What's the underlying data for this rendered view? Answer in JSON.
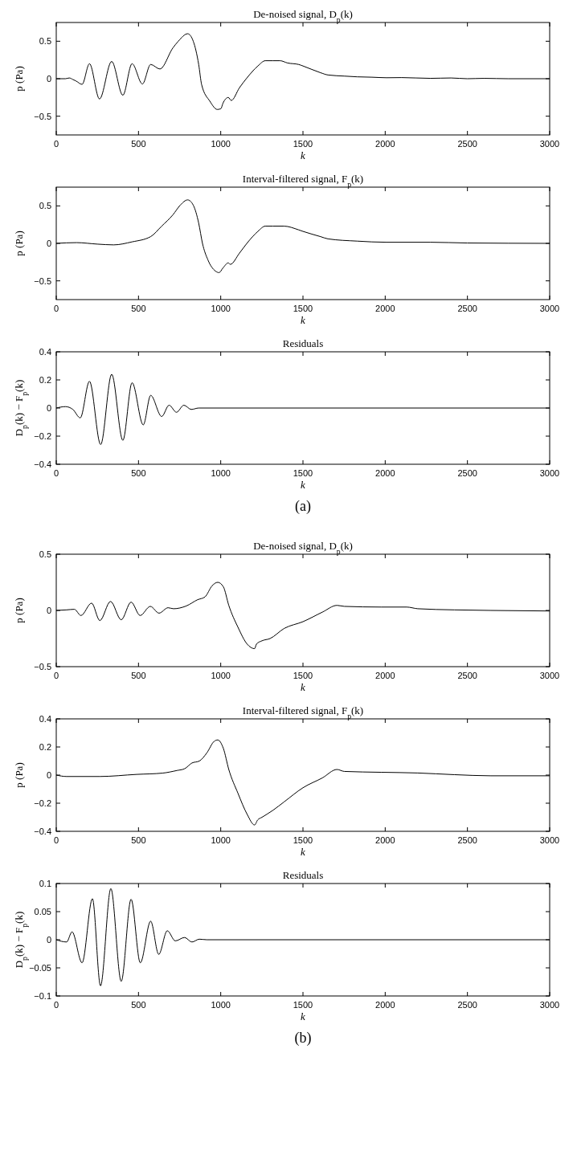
{
  "chart_data": [
    {
      "type": "line",
      "title": "De-noised signal, D$_{p}$(k)",
      "xlabel": "k",
      "ylabel": "p (Pa)",
      "color": "#000000",
      "x": [
        0,
        56,
        79,
        101,
        120,
        157,
        202,
        263,
        337,
        405,
        461,
        524,
        574,
        630,
        709,
        742,
        799,
        833,
        866,
        884,
        934,
        979,
        1001,
        1013,
        1046,
        1064,
        1114,
        1159,
        1226,
        1271,
        1316,
        1361,
        1406,
        1474,
        1500,
        1607,
        1652,
        1750,
        1830,
        1920,
        2008,
        2100,
        2276,
        2400,
        2499,
        2600,
        2750,
        3000
      ],
      "values": [
        0,
        0,
        0.01,
        -0.01,
        -0.03,
        -0.075,
        0.2,
        -0.27,
        0.23,
        -0.22,
        0.2,
        -0.07,
        0.19,
        0.13,
        0.41,
        0.5,
        0.6,
        0.5,
        0.19,
        -0.08,
        -0.3,
        -0.41,
        -0.4,
        -0.33,
        -0.25,
        -0.29,
        -0.12,
        0.01,
        0.17,
        0.24,
        0.24,
        0.24,
        0.21,
        0.19,
        0.17,
        0.08,
        0.05,
        0.035,
        0.025,
        0.02,
        0.013,
        0.015,
        0.005,
        0.01,
        0,
        0.005,
        0,
        0
      ],
      "xlim": [
        0,
        3000
      ],
      "xticks": [
        0,
        500,
        1000,
        1500,
        2000,
        2500,
        3000
      ],
      "ylim": [
        -0.75,
        0.75
      ],
      "yticks": [
        {
          "value": -0.5,
          "label": "−0.5"
        },
        0,
        0.5
      ]
    },
    {
      "type": "line",
      "title": "Interval-filtered signal, F$_{p}$(k)",
      "xlabel": "k",
      "ylabel": "p (Pa)",
      "color": "#000000",
      "x": [
        0,
        124,
        250,
        349,
        461,
        574,
        641,
        709,
        754,
        799,
        833,
        866,
        889,
        922,
        968,
        990,
        1013,
        1046,
        1058,
        1114,
        1159,
        1226,
        1271,
        1316,
        1384,
        1474,
        1500,
        1607,
        1652,
        1830,
        2008,
        2276,
        2500,
        3000
      ],
      "values": [
        0,
        0.01,
        -0.01,
        -0.02,
        0.02,
        0.09,
        0.23,
        0.38,
        0.51,
        0.58,
        0.51,
        0.27,
        0,
        -0.22,
        -0.37,
        -0.39,
        -0.33,
        -0.26,
        -0.28,
        -0.13,
        0,
        0.16,
        0.23,
        0.23,
        0.23,
        0.18,
        0.16,
        0.09,
        0.06,
        0.03,
        0.015,
        0.015,
        0.005,
        0
      ],
      "xlim": [
        0,
        3000
      ],
      "xticks": [
        0,
        500,
        1000,
        1500,
        2000,
        2500,
        3000
      ],
      "ylim": [
        -0.75,
        0.75
      ],
      "yticks": [
        {
          "value": -0.5,
          "label": "−0.5"
        },
        0,
        0.5
      ]
    },
    {
      "type": "line",
      "title": "Residuals",
      "xlabel": "k",
      "ylabel": "D$_{p}$(k) − F$_{p}$(k)",
      "color": "#000000",
      "annotations": [
        "(a)"
      ],
      "x": [
        0,
        56,
        101,
        146,
        202,
        270,
        337,
        405,
        461,
        529,
        574,
        641,
        686,
        731,
        776,
        821,
        866,
        3000
      ],
      "values": [
        0,
        0.01,
        -0.01,
        -0.07,
        0.19,
        -0.26,
        0.24,
        -0.23,
        0.18,
        -0.12,
        0.09,
        -0.06,
        0.02,
        -0.03,
        0.02,
        -0.01,
        0,
        0
      ],
      "xlim": [
        0,
        3000
      ],
      "xticks": [
        0,
        500,
        1000,
        1500,
        2000,
        2500,
        3000
      ],
      "ylim": [
        -0.4,
        0.4
      ],
      "yticks": [
        {
          "value": -0.4,
          "label": "−0.4"
        },
        {
          "value": -0.2,
          "label": "−0.2"
        },
        0,
        0.2,
        0.4
      ]
    },
    {
      "type": "line",
      "title": "De-noised signal, D$_{p}$(k)",
      "xlabel": "k",
      "ylabel": "p (Pa)",
      "color": "#000000",
      "x": [
        0,
        63,
        110,
        150,
        215,
        265,
        330,
        395,
        455,
        510,
        572,
        625,
        680,
        713,
        791,
        859,
        904,
        948,
        982,
        1016,
        1049,
        1105,
        1161,
        1206,
        1217,
        1251,
        1300,
        1386,
        1500,
        1618,
        1707,
        1752,
        1975,
        2131,
        2198,
        2420,
        2643,
        3000
      ],
      "values": [
        0,
        0.005,
        0.01,
        -0.045,
        0.065,
        -0.09,
        0.08,
        -0.083,
        0.074,
        -0.045,
        0.036,
        -0.024,
        0.024,
        0.015,
        0.04,
        0.095,
        0.12,
        0.22,
        0.25,
        0.21,
        0.045,
        -0.15,
        -0.3,
        -0.34,
        -0.3,
        -0.27,
        -0.25,
        -0.16,
        -0.1,
        -0.015,
        0.045,
        0.036,
        0.03,
        0.03,
        0.015,
        0.005,
        0,
        -0.005
      ],
      "xlim": [
        0,
        3000
      ],
      "xticks": [
        0,
        500,
        1000,
        1500,
        2000,
        2500,
        3000
      ],
      "ylim": [
        -0.5,
        0.5
      ],
      "yticks": [
        {
          "value": -0.5,
          "label": "−0.5"
        },
        0,
        0.5
      ]
    },
    {
      "type": "line",
      "title": "Interval-filtered signal, F$_{p}$(k)",
      "xlabel": "k",
      "ylabel": "p (Pa)",
      "color": "#000000",
      "x": [
        0,
        63,
        265,
        489,
        646,
        735,
        780,
        825,
        870,
        915,
        960,
        982,
        1016,
        1049,
        1105,
        1161,
        1206,
        1224,
        1251,
        1318,
        1386,
        1500,
        1618,
        1707,
        1752,
        1975,
        2198,
        2420,
        2643,
        3000
      ],
      "values": [
        0,
        -0.01,
        -0.01,
        0.005,
        0.014,
        0.033,
        0.045,
        0.086,
        0.1,
        0.157,
        0.24,
        0.25,
        0.19,
        0.04,
        -0.13,
        -0.28,
        -0.355,
        -0.32,
        -0.3,
        -0.25,
        -0.19,
        -0.09,
        -0.02,
        0.04,
        0.026,
        0.02,
        0.015,
        0.003,
        -0.005,
        -0.005
      ],
      "xlim": [
        0,
        3000
      ],
      "xticks": [
        0,
        500,
        1000,
        1500,
        2000,
        2500,
        3000
      ],
      "ylim": [
        -0.4,
        0.4
      ],
      "yticks": [
        {
          "value": -0.4,
          "label": "−0.4"
        },
        {
          "value": -0.2,
          "label": "−0.2"
        },
        0,
        0.2,
        0.4
      ]
    },
    {
      "type": "line",
      "title": "Residuals",
      "xlabel": "k",
      "ylabel": "D$_{p}$(k) − F$_{p}$(k)",
      "color": "#000000",
      "annotations": [
        "(b)"
      ],
      "x": [
        0,
        63,
        96,
        157,
        220,
        269,
        332,
        395,
        455,
        511,
        574,
        623,
        675,
        724,
        780,
        825,
        870,
        915,
        3000
      ],
      "values": [
        0,
        -0.004,
        0.014,
        -0.041,
        0.073,
        -0.082,
        0.091,
        -0.074,
        0.072,
        -0.041,
        0.033,
        -0.026,
        0.016,
        -0.002,
        0.004,
        -0.004,
        0.001,
        0,
        0
      ],
      "xlim": [
        0,
        3000
      ],
      "xticks": [
        0,
        500,
        1000,
        1500,
        2000,
        2500,
        3000
      ],
      "ylim": [
        -0.1,
        0.1
      ],
      "yticks": [
        {
          "value": -0.1,
          "label": "−0.1"
        },
        {
          "value": -0.05,
          "label": "−0.05"
        },
        0,
        0.05,
        0.1
      ]
    }
  ]
}
